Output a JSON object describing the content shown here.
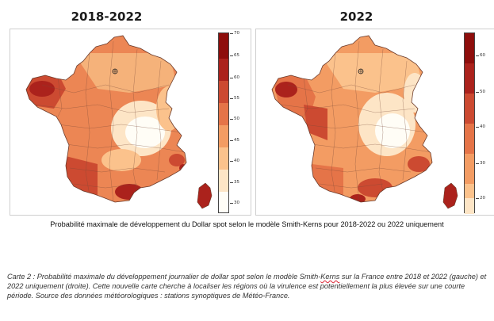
{
  "maps": [
    {
      "title": "2018-2022",
      "legend": {
        "ticks": [
          "70",
          "65",
          "60",
          "55",
          "50",
          "45",
          "40",
          "35",
          "30"
        ],
        "min": 27,
        "max": 71
      }
    },
    {
      "title": "2022",
      "legend": {
        "ticks": [
          "60",
          "50",
          "40",
          "30",
          "20"
        ],
        "min": 15,
        "max": 68
      }
    }
  ],
  "colors": {
    "scale": [
      "#fffdf6",
      "#fde5c6",
      "#fbc28c",
      "#f39c63",
      "#e57448",
      "#cc4a31",
      "#ab221c",
      "#8e0e0c"
    ]
  },
  "caption_main": "Probabilité maximale de développement du Dollar spot selon le modèle Smith-Kerns pour 2018-2022 ou 2022 uniquement",
  "caption_note": {
    "before": "Carte 2 : Probabilité maximale du développement journalier de dollar spot selon le modèle Smith-",
    "flagged": "Kerns",
    "after": " sur la France entre 2018 et 2022 (gauche) et 2022 uniquement (droite). Cette nouvelle carte cherche à localiser les régions où la virulence est potentiellement la plus élevée sur une courte période. Source des données météorologiques : stations synoptiques de Météo-France."
  }
}
